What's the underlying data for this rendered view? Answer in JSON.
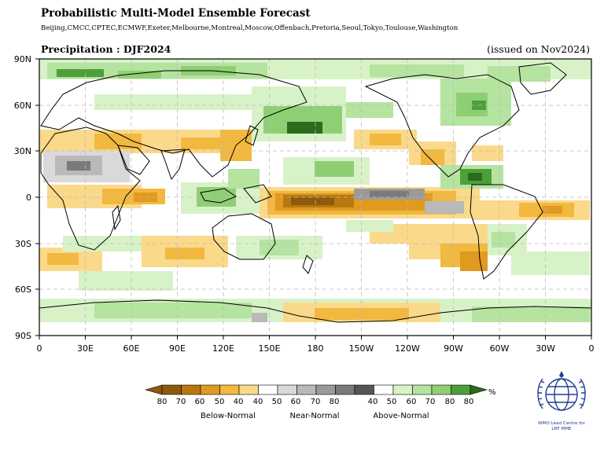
{
  "header": {
    "title": "Probabilistic Multi-Model Ensemble Forecast",
    "centres": "Beijing,CMCC,CPTEC,ECMWF,Exeter,Melbourne,Montreal,Moscow,Offenbach,Pretoria,Seoul,Tokyo,Toulouse,Washington",
    "variable": "Precipitation : DJF2024",
    "issued": "(issued on Nov2024)"
  },
  "map": {
    "projection": "equirectangular, 0-360 longitude",
    "lat_ticks": [
      "90N",
      "60N",
      "30N",
      "0",
      "30S",
      "60S",
      "90S"
    ],
    "lon_ticks": [
      "0",
      "30E",
      "60E",
      "90E",
      "120E",
      "150E",
      "180",
      "150W",
      "120W",
      "90W",
      "60W",
      "30W",
      "0"
    ],
    "gridlines": true
  },
  "legend": {
    "unit": "%",
    "below": {
      "label": "Below-Normal",
      "ticks": [
        "80",
        "70",
        "60",
        "50",
        "40"
      ],
      "colors": [
        "#8c5a0e",
        "#b8780f",
        "#e09a1f",
        "#f2b83f",
        "#fbd98a"
      ]
    },
    "near": {
      "label": "Near-Normal",
      "ticks": [
        "40",
        "50",
        "60",
        "70",
        "80"
      ],
      "colors": [
        "#d9d9d9",
        "#b9b9b9",
        "#9a9a9a",
        "#7a7a7a",
        "#555555"
      ]
    },
    "above": {
      "label": "Above-Normal",
      "ticks": [
        "40",
        "50",
        "60",
        "70",
        "80"
      ],
      "colors": [
        "#d8f2c8",
        "#b5e3a0",
        "#8fcf74",
        "#4c9f3a",
        "#2a6b1d"
      ]
    }
  },
  "logo": {
    "text_line1": "WMO Lead Centre for",
    "text_line2": "LRF MME"
  }
}
